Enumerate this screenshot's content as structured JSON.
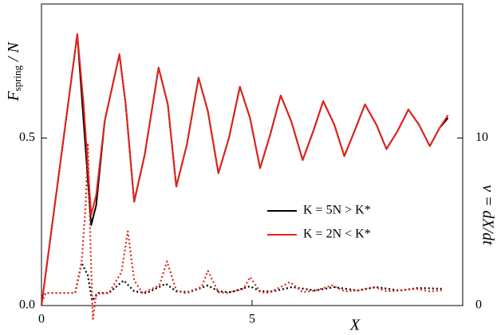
{
  "chart_data": {
    "type": "line",
    "x_label": "X",
    "y_label": {
      "main": "F",
      "sub": "spring",
      "rest": " / N"
    },
    "y2_label": "v = dX/dt",
    "xlim": [
      0,
      10
    ],
    "xticks": [
      0,
      5
    ],
    "ylim": [
      0,
      0.9
    ],
    "yticks": [
      {
        "value": 0,
        "label": "0.0"
      },
      0.5
    ],
    "y2lim": [
      0,
      18
    ],
    "y2ticks": [
      0,
      10
    ],
    "legend": "center-right",
    "series": [
      {
        "name": "K = 5N > K*",
        "color": "#000000",
        "style": "solid",
        "x": [
          0,
          0.4,
          0.85,
          1.0,
          1.18,
          1.3,
          1.5,
          1.85,
          2.0,
          2.2,
          2.45,
          2.78,
          3.0,
          3.2,
          3.45,
          3.73,
          3.95,
          4.2,
          4.45,
          4.71,
          4.95,
          5.19,
          5.43,
          5.68,
          5.93,
          6.2,
          6.45,
          6.69,
          6.95,
          7.19,
          7.43,
          7.68,
          7.95,
          8.19,
          8.45,
          8.71,
          8.96,
          9.22,
          9.45,
          9.65
        ],
        "values": [
          0,
          0.38,
          0.81,
          0.55,
          0.24,
          0.3,
          0.55,
          0.75,
          0.6,
          0.31,
          0.45,
          0.71,
          0.6,
          0.355,
          0.48,
          0.68,
          0.58,
          0.395,
          0.5,
          0.653,
          0.56,
          0.41,
          0.51,
          0.627,
          0.55,
          0.434,
          0.52,
          0.61,
          0.54,
          0.446,
          0.52,
          0.6,
          0.54,
          0.467,
          0.52,
          0.585,
          0.54,
          0.476,
          0.53,
          0.56
        ]
      },
      {
        "name": "K = 2N < K*",
        "color": "#e8221b",
        "style": "solid",
        "x": [
          0,
          0.4,
          0.85,
          1.0,
          1.18,
          1.3,
          1.5,
          1.85,
          2.0,
          2.2,
          2.45,
          2.78,
          3.0,
          3.2,
          3.45,
          3.73,
          3.95,
          4.2,
          4.45,
          4.71,
          4.95,
          5.19,
          5.43,
          5.68,
          5.93,
          6.2,
          6.45,
          6.69,
          6.95,
          7.19,
          7.43,
          7.68,
          7.95,
          8.19,
          8.45,
          8.71,
          8.96,
          9.22,
          9.45,
          9.65
        ],
        "values": [
          0,
          0.38,
          0.81,
          0.6,
          0.27,
          0.33,
          0.55,
          0.75,
          0.6,
          0.31,
          0.45,
          0.71,
          0.6,
          0.355,
          0.48,
          0.68,
          0.58,
          0.395,
          0.5,
          0.653,
          0.56,
          0.41,
          0.51,
          0.627,
          0.55,
          0.434,
          0.52,
          0.61,
          0.54,
          0.446,
          0.52,
          0.6,
          0.54,
          0.467,
          0.52,
          0.585,
          0.54,
          0.476,
          0.53,
          0.568
        ]
      },
      {
        "color": "#000000",
        "style": "dotted",
        "axis": "y2",
        "x": [
          0,
          0.1,
          0.8,
          0.95,
          1.1,
          1.2,
          1.35,
          1.6,
          1.95,
          2.2,
          2.5,
          2.95,
          3.2,
          3.5,
          3.95,
          4.2,
          4.5,
          4.95,
          5.2,
          5.5,
          5.95,
          6.5,
          6.95,
          7.5,
          7.95,
          8.5,
          8.95,
          9.5
        ],
        "values": [
          0.2,
          0.75,
          0.75,
          2.55,
          1.8,
          0.3,
          0.75,
          0.75,
          1.5,
          0.85,
          0.75,
          1.3,
          0.85,
          0.8,
          1.2,
          0.85,
          0.8,
          1.15,
          0.85,
          0.85,
          1.1,
          0.9,
          1.1,
          0.9,
          1.1,
          0.9,
          1.05,
          1.0
        ]
      },
      {
        "color": "#e8221b",
        "style": "dotted",
        "axis": "y2",
        "x": [
          0,
          0.1,
          0.8,
          0.95,
          1.05,
          1.1,
          1.17,
          1.22,
          1.3,
          1.6,
          1.9,
          2.05,
          2.2,
          2.4,
          2.8,
          2.98,
          3.2,
          3.4,
          3.8,
          3.95,
          4.2,
          4.4,
          4.8,
          4.95,
          5.2,
          5.4,
          5.9,
          6.2,
          6.5,
          6.9,
          7.2,
          7.5,
          7.9,
          8.2,
          8.5,
          8.9,
          9.2,
          9.5
        ],
        "values": [
          0.2,
          0.75,
          0.75,
          2.5,
          6,
          9.7,
          3,
          -0.8,
          0.7,
          0.75,
          2,
          4.43,
          1.5,
          0.75,
          1.2,
          2.64,
          0.9,
          0.75,
          1.1,
          2.07,
          0.8,
          0.75,
          1.0,
          1.7,
          0.8,
          0.75,
          1.4,
          0.8,
          0.9,
          1.2,
          0.85,
          0.9,
          1.1,
          0.85,
          0.9,
          1.0,
          0.85,
          0.9
        ]
      }
    ]
  }
}
